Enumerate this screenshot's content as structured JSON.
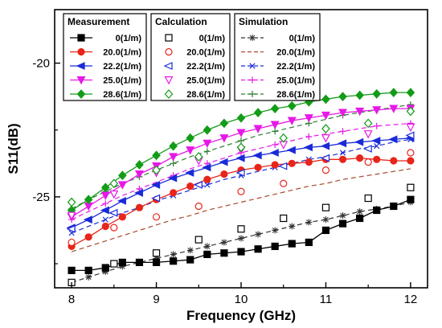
{
  "chart_data": {
    "type": "line",
    "xlabel": "Frequency (GHz)",
    "ylabel": "S11(dB)",
    "xlim": [
      7.8,
      12.2
    ],
    "ylim": [
      -28.4,
      -18.0
    ],
    "xticks": [
      8,
      9,
      10,
      11,
      12
    ],
    "xtick_labels": [
      "8",
      "9",
      "10",
      "11",
      "12"
    ],
    "yticks": [
      -20,
      -25
    ],
    "ytick_labels": [
      "-20",
      "-25"
    ],
    "grid": false,
    "legend_groups": [
      {
        "title": "Measurement",
        "style": "solid",
        "marker_fill": "filled"
      },
      {
        "title": "Calculation",
        "style": "none",
        "marker_fill": "hollow"
      },
      {
        "title": "Simulation",
        "style": "dashed",
        "marker_fill": "hollow"
      }
    ],
    "series_labels": [
      "0(1/m)",
      "20.0(1/m)",
      "22.2(1/m)",
      "25.0(1/m)",
      "28.6(1/m)"
    ],
    "colors": [
      "#000000",
      "#e8251a",
      "#1a2bd8",
      "#e619e6",
      "#139c17"
    ],
    "sim_colors": [
      "#333333",
      "#a84a2e",
      "#1a2bd8",
      "#e619e6",
      "#2e7d32"
    ],
    "markers": [
      "square",
      "circle",
      "triangle-left",
      "triangle-down",
      "diamond"
    ],
    "sim_markers": [
      "asterisk",
      "none",
      "x",
      "plus",
      "plus"
    ],
    "measurement": [
      {
        "name": "0(1/m)",
        "x": [
          8.0,
          8.2,
          8.4,
          8.6,
          8.8,
          9.0,
          9.2,
          9.4,
          9.6,
          9.8,
          10.0,
          10.2,
          10.4,
          10.6,
          10.8,
          11.0,
          11.2,
          11.4,
          11.6,
          11.8,
          12.0
        ],
        "y": [
          -27.75,
          -27.75,
          -27.65,
          -27.45,
          -27.45,
          -27.45,
          -27.4,
          -27.35,
          -27.15,
          -27.1,
          -27.05,
          -26.95,
          -26.85,
          -26.75,
          -26.7,
          -26.25,
          -26.0,
          -25.8,
          -25.5,
          -25.35,
          -25.1
        ]
      },
      {
        "name": "20.0(1/m)",
        "x": [
          8.0,
          8.2,
          8.4,
          8.6,
          8.8,
          9.0,
          9.2,
          9.4,
          9.6,
          9.8,
          10.0,
          10.2,
          10.4,
          10.6,
          10.8,
          11.0,
          11.2,
          11.4,
          11.6,
          11.8,
          12.0
        ],
        "y": [
          -26.85,
          -26.5,
          -26.1,
          -25.75,
          -25.4,
          -25.1,
          -24.85,
          -24.6,
          -24.35,
          -24.15,
          -24.0,
          -23.9,
          -23.8,
          -23.75,
          -23.7,
          -23.6,
          -23.6,
          -23.55,
          -23.6,
          -23.65,
          -23.65
        ]
      },
      {
        "name": "22.2(1/m)",
        "x": [
          8.0,
          8.2,
          8.4,
          8.6,
          8.8,
          9.0,
          9.2,
          9.4,
          9.6,
          9.8,
          10.0,
          10.2,
          10.4,
          10.6,
          10.8,
          11.0,
          11.2,
          11.4,
          11.6,
          11.8,
          12.0
        ],
        "y": [
          -26.15,
          -25.85,
          -25.5,
          -25.15,
          -24.85,
          -24.55,
          -24.3,
          -24.1,
          -23.9,
          -23.7,
          -23.55,
          -23.45,
          -23.35,
          -23.25,
          -23.15,
          -23.1,
          -23.0,
          -22.95,
          -22.9,
          -22.85,
          -22.8
        ]
      },
      {
        "name": "25.0(1/m)",
        "x": [
          8.0,
          8.2,
          8.4,
          8.6,
          8.8,
          9.0,
          9.2,
          9.4,
          9.6,
          9.8,
          10.0,
          10.2,
          10.4,
          10.6,
          10.8,
          11.0,
          11.2,
          11.4,
          11.6,
          11.8,
          12.0
        ],
        "y": [
          -25.75,
          -25.35,
          -24.95,
          -24.55,
          -24.15,
          -23.85,
          -23.5,
          -23.25,
          -23.0,
          -22.8,
          -22.6,
          -22.45,
          -22.3,
          -22.15,
          -22.05,
          -21.95,
          -21.85,
          -21.8,
          -21.75,
          -21.7,
          -21.7
        ]
      },
      {
        "name": "28.6(1/m)",
        "x": [
          8.0,
          8.2,
          8.4,
          8.6,
          8.8,
          9.0,
          9.2,
          9.4,
          9.6,
          9.8,
          10.0,
          10.2,
          10.4,
          10.6,
          10.8,
          11.0,
          11.2,
          11.4,
          11.6,
          11.8,
          12.0
        ],
        "y": [
          -25.5,
          -25.1,
          -24.65,
          -24.2,
          -23.8,
          -23.45,
          -23.1,
          -22.8,
          -22.5,
          -22.25,
          -22.05,
          -21.85,
          -21.7,
          -21.6,
          -21.45,
          -21.35,
          -21.25,
          -21.2,
          -21.15,
          -21.1,
          -21.1
        ]
      }
    ],
    "calculation": [
      {
        "name": "0(1/m)",
        "x": [
          8.0,
          8.5,
          9.0,
          9.5,
          10.0,
          10.5,
          11.0,
          11.5,
          12.0
        ],
        "y": [
          -28.2,
          -27.5,
          -27.1,
          -26.6,
          -26.2,
          -25.8,
          -25.4,
          -25.05,
          -24.65
        ]
      },
      {
        "name": "20.0(1/m)",
        "x": [
          8.0,
          8.5,
          9.0,
          9.5,
          10.0,
          10.5,
          11.0,
          11.5,
          12.0
        ],
        "y": [
          -26.7,
          -26.15,
          -25.75,
          -25.35,
          -24.8,
          -24.5,
          -24.0,
          -23.7,
          -23.35
        ]
      },
      {
        "name": "22.2(1/m)",
        "x": [
          8.0,
          8.5,
          9.0,
          9.5,
          10.0,
          10.5,
          11.0,
          11.5,
          12.0
        ],
        "y": [
          -26.2,
          -25.6,
          -25.05,
          -24.55,
          -24.1,
          -23.85,
          -23.55,
          -23.2,
          -22.7
        ]
      },
      {
        "name": "25.0(1/m)",
        "x": [
          8.0,
          8.5,
          9.0,
          9.5,
          10.0,
          10.5,
          11.0,
          11.5,
          12.0
        ],
        "y": [
          -25.7,
          -24.9,
          -24.1,
          -23.65,
          -23.25,
          -23.05,
          -22.8,
          -22.65,
          -22.4
        ]
      },
      {
        "name": "28.6(1/m)",
        "x": [
          8.0,
          8.5,
          9.0,
          9.5,
          10.0,
          10.5,
          11.0,
          11.5,
          12.0
        ],
        "y": [
          -25.2,
          -24.5,
          -24.0,
          -23.5,
          -23.15,
          -22.8,
          -22.45,
          -22.25,
          -21.8
        ]
      }
    ],
    "simulation": [
      {
        "name": "0(1/m)",
        "x": [
          8.0,
          8.2,
          8.4,
          8.6,
          8.8,
          9.0,
          9.2,
          9.4,
          9.6,
          9.8,
          10.0,
          10.2,
          10.4,
          10.6,
          10.8,
          11.0,
          11.2,
          11.4,
          11.6,
          11.8,
          12.0
        ],
        "y": [
          -28.2,
          -28.0,
          -27.8,
          -27.6,
          -27.45,
          -27.3,
          -27.15,
          -27.0,
          -26.85,
          -26.7,
          -26.55,
          -26.4,
          -26.25,
          -26.1,
          -25.95,
          -25.85,
          -25.7,
          -25.55,
          -25.45,
          -25.35,
          -25.2
        ]
      },
      {
        "name": "20.0(1/m)",
        "x": [
          8.0,
          8.2,
          8.4,
          8.6,
          8.8,
          9.0,
          9.2,
          9.4,
          9.6,
          9.8,
          10.0,
          10.2,
          10.4,
          10.6,
          10.8,
          11.0,
          11.2,
          11.4,
          11.6,
          11.8,
          12.0
        ],
        "y": [
          -27.05,
          -26.85,
          -26.65,
          -26.45,
          -26.25,
          -26.05,
          -25.85,
          -25.7,
          -25.5,
          -25.35,
          -25.2,
          -25.05,
          -24.9,
          -24.75,
          -24.6,
          -24.5,
          -24.35,
          -24.25,
          -24.15,
          -24.05,
          -23.95
        ]
      },
      {
        "name": "22.2(1/m)",
        "x": [
          8.0,
          8.2,
          8.4,
          8.6,
          8.8,
          9.0,
          9.2,
          9.4,
          9.6,
          9.8,
          10.0,
          10.2,
          10.4,
          10.6,
          10.8,
          11.0,
          11.2,
          11.4,
          11.6,
          11.8,
          12.0
        ],
        "y": [
          -26.35,
          -26.1,
          -25.85,
          -25.6,
          -25.4,
          -25.15,
          -24.95,
          -24.75,
          -24.55,
          -24.35,
          -24.2,
          -24.05,
          -23.9,
          -23.75,
          -23.6,
          -23.5,
          -23.35,
          -23.2,
          -23.1,
          -22.95,
          -22.85
        ]
      },
      {
        "name": "25.0(1/m)",
        "x": [
          8.0,
          8.2,
          8.4,
          8.6,
          8.8,
          9.0,
          9.2,
          9.4,
          9.6,
          9.8,
          10.0,
          10.2,
          10.4,
          10.6,
          10.8,
          11.0,
          11.2,
          11.4,
          11.6,
          11.8,
          12.0
        ],
        "y": [
          -25.85,
          -25.55,
          -25.25,
          -24.95,
          -24.7,
          -24.45,
          -24.2,
          -23.95,
          -23.75,
          -23.55,
          -23.35,
          -23.2,
          -23.05,
          -22.9,
          -22.75,
          -22.65,
          -22.55,
          -22.45,
          -22.35,
          -22.3,
          -22.25
        ]
      },
      {
        "name": "28.6(1/m)",
        "x": [
          8.0,
          8.2,
          8.4,
          8.6,
          8.8,
          9.0,
          9.2,
          9.4,
          9.6,
          9.8,
          10.0,
          10.2,
          10.4,
          10.6,
          10.8,
          11.0,
          11.2,
          11.4,
          11.6,
          11.8,
          12.0
        ],
        "y": [
          -25.45,
          -25.1,
          -24.8,
          -24.5,
          -24.25,
          -24.0,
          -23.75,
          -23.5,
          -23.3,
          -23.1,
          -22.9,
          -22.7,
          -22.55,
          -22.4,
          -22.25,
          -22.1,
          -21.95,
          -21.85,
          -21.75,
          -21.65,
          -21.55
        ]
      }
    ]
  }
}
